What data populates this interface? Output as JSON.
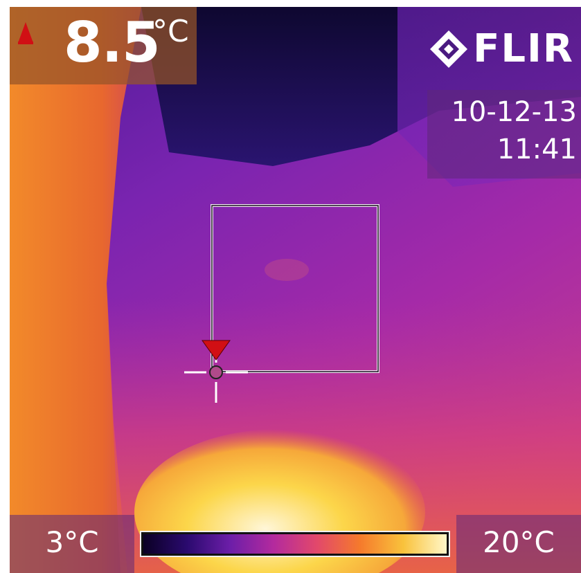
{
  "readout": {
    "spot_temperature_value": "8.5",
    "spot_temperature_unit": "°C"
  },
  "brand": {
    "logo_text": "FLIR"
  },
  "timestamp": {
    "date": "10-12-13",
    "time": "11:41"
  },
  "scale": {
    "min_label": "3°C",
    "max_label": "20°C",
    "palette": [
      "#0b0024",
      "#2a0a6e",
      "#6c1ea8",
      "#b32a9e",
      "#e2486b",
      "#f57a2c",
      "#f9c23c",
      "#fff7c8"
    ]
  },
  "colors": {
    "marker_red": "#d10f14",
    "box_line": "#1a0f22",
    "crosshair": "#ffffff"
  },
  "icons": {
    "spot_indicator": "red-triangle-icon",
    "brand_mark": "diamond-logo-icon",
    "cursor": "crosshair-icon"
  }
}
